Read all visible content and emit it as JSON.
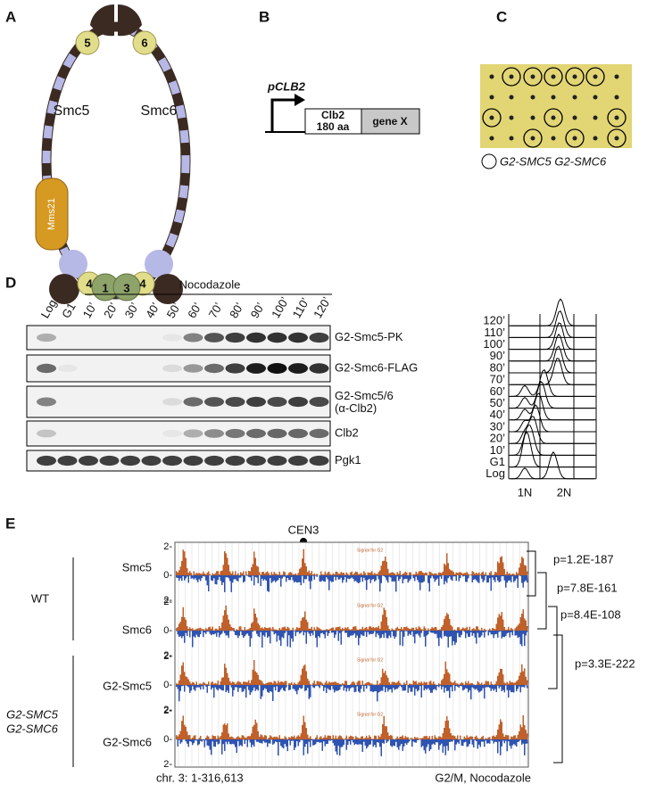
{
  "panel_a": {
    "label": "A",
    "subunits": [
      "5",
      "6"
    ],
    "smc5": "Smc5",
    "smc6": "Smc6",
    "mms21": "Mms21",
    "nse": [
      "4",
      "1",
      "3",
      "4"
    ]
  },
  "panel_b": {
    "label": "B",
    "promoter": "pCLB2",
    "tag": "Clb2",
    "tag_size": "180 aa",
    "gene": "gene X"
  },
  "panel_c": {
    "label": "C",
    "legend": "G2-SMC5 G2-SMC6"
  },
  "panel_d": {
    "label": "D",
    "treatment": "Nocodazole",
    "lanes": [
      "Log",
      "G1",
      "10’",
      "20’",
      "30’",
      "40’",
      "50’",
      "60’",
      "70’",
      "80’",
      "90’",
      "100’",
      "110’",
      "120’"
    ],
    "blots": [
      [
        "G2-Smc5-PK"
      ],
      [
        "G2-Smc6-FLAG"
      ],
      [
        "G2-Smc5/6",
        "(α-Clb2)"
      ],
      [
        "Clb2"
      ],
      [
        "Pgk1"
      ]
    ],
    "facs": {
      "timepoints": [
        "120’",
        "110’",
        "100’",
        "90’",
        "80’",
        "70’",
        "60’",
        "50’",
        "40’",
        "30’",
        "20’",
        "10’",
        "G1",
        "Log"
      ],
      "x_labels": [
        "1N",
        "2N"
      ]
    }
  },
  "panel_e": {
    "label": "E",
    "centromere": "CEN3",
    "groups": [
      {
        "name": [
          "WT"
        ],
        "tracks": [
          "Smc5",
          "Smc6"
        ]
      },
      {
        "name": [
          "G2-SMC5",
          "G2-SMC6"
        ],
        "tracks": [
          "G2-Smc5",
          "G2-Smc6"
        ]
      }
    ],
    "track_axis": [
      "2-",
      "0-"
    ],
    "track_note": "Signal for G2",
    "p_values": [
      "p=1.2E-187",
      "p=7.8E-161",
      "p=8.4E-108",
      "p=3.3E-222"
    ],
    "region": "chr. 3: 1-316,613",
    "condition": "G2/M, Nocodazole"
  }
}
